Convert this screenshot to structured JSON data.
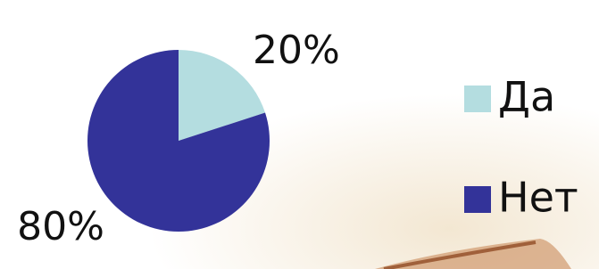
{
  "chart_data": {
    "type": "pie",
    "categories": [
      "Да",
      "Нет"
    ],
    "values": [
      20,
      80
    ],
    "value_labels": [
      "20%",
      "80%"
    ],
    "colors": [
      "#b4dde0",
      "#333399"
    ],
    "legend": "right"
  }
}
